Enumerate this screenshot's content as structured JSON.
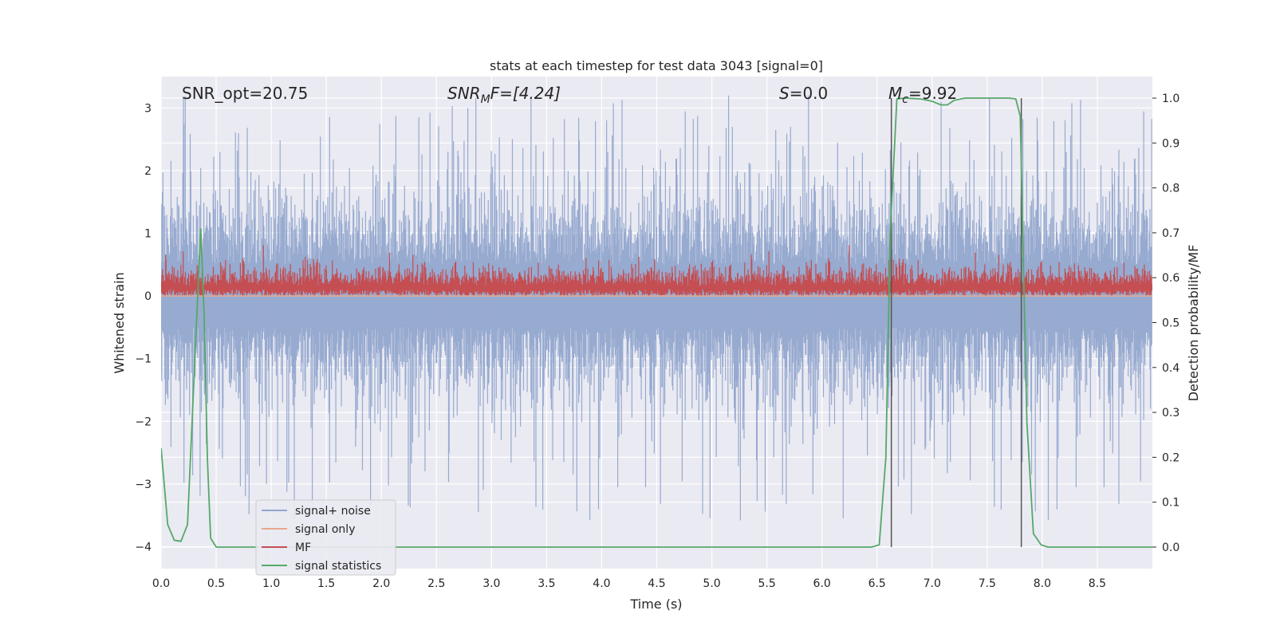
{
  "chart_data": {
    "type": "line",
    "title": "stats at each timestep for test data 3043 [signal=0]",
    "xlabel": "Time (s)",
    "ylabel_left": "Whitened strain",
    "ylabel_right": "Detection probability/MF",
    "xlim": [
      0.0,
      9.0
    ],
    "ylim_left": [
      -4.35,
      3.5
    ],
    "ylim_right": [
      -0.048,
      1.048
    ],
    "x_ticks": [
      "0.0",
      "0.5",
      "1.0",
      "1.5",
      "2.0",
      "2.5",
      "3.0",
      "3.5",
      "4.0",
      "4.5",
      "5.0",
      "5.5",
      "6.0",
      "6.5",
      "7.0",
      "7.5",
      "8.0",
      "8.5"
    ],
    "y_ticks_left": [
      "3",
      "2",
      "1",
      "0",
      "−1",
      "−2",
      "−3",
      "−4"
    ],
    "y_ticks_right": [
      "1.0",
      "0.9",
      "0.8",
      "0.7",
      "0.6",
      "0.5",
      "0.4",
      "0.3",
      "0.2",
      "0.1",
      "0.0"
    ],
    "grid": true,
    "legend_position": "lower-left",
    "annotations": {
      "snr_opt": "SNR_opt=20.75",
      "snr_mf_sym": "SNR",
      "snr_mf_sub": "M",
      "snr_mf_rest": "F=[4.24]",
      "s_sym": "S",
      "s_rest": "=0.0",
      "mc_sym": "M",
      "mc_sub": "c",
      "mc_rest": "=9.92"
    },
    "vertical_lines_s": [
      6.63,
      7.81
    ],
    "series": [
      {
        "name": "signal+ noise",
        "color": "#92a6cd",
        "axis": "left",
        "kind": "noise",
        "amplitude_range": [
          -3.6,
          3.2
        ]
      },
      {
        "name": "signal only",
        "color": "#e8a88a",
        "axis": "left",
        "kind": "flat",
        "value": 0.0
      },
      {
        "name": "MF",
        "color": "#c44e52",
        "axis": "right",
        "kind": "mf",
        "range": [
          0.56,
          0.69
        ]
      },
      {
        "name": "signal statistics",
        "color": "#55a868",
        "axis": "right",
        "x": [
          0.0,
          0.06,
          0.12,
          0.18,
          0.24,
          0.3,
          0.36,
          0.39,
          0.42,
          0.45,
          0.5,
          1.0,
          2.0,
          3.0,
          4.0,
          5.0,
          6.0,
          6.45,
          6.52,
          6.58,
          6.62,
          6.68,
          6.75,
          6.9,
          7.0,
          7.08,
          7.14,
          7.2,
          7.3,
          7.5,
          7.7,
          7.76,
          7.8,
          7.86,
          7.92,
          7.99,
          8.05,
          8.5,
          9.0
        ],
        "y": [
          0.22,
          0.05,
          0.015,
          0.013,
          0.05,
          0.38,
          0.71,
          0.52,
          0.2,
          0.02,
          0.0,
          0.0,
          0.0,
          0.0,
          0.0,
          0.0,
          0.0,
          0.0,
          0.005,
          0.2,
          0.7,
          0.998,
          1.0,
          0.998,
          0.993,
          0.985,
          0.985,
          0.995,
          1.0,
          1.0,
          1.0,
          0.998,
          0.96,
          0.28,
          0.03,
          0.005,
          0.0,
          0.0,
          0.0
        ]
      }
    ]
  }
}
